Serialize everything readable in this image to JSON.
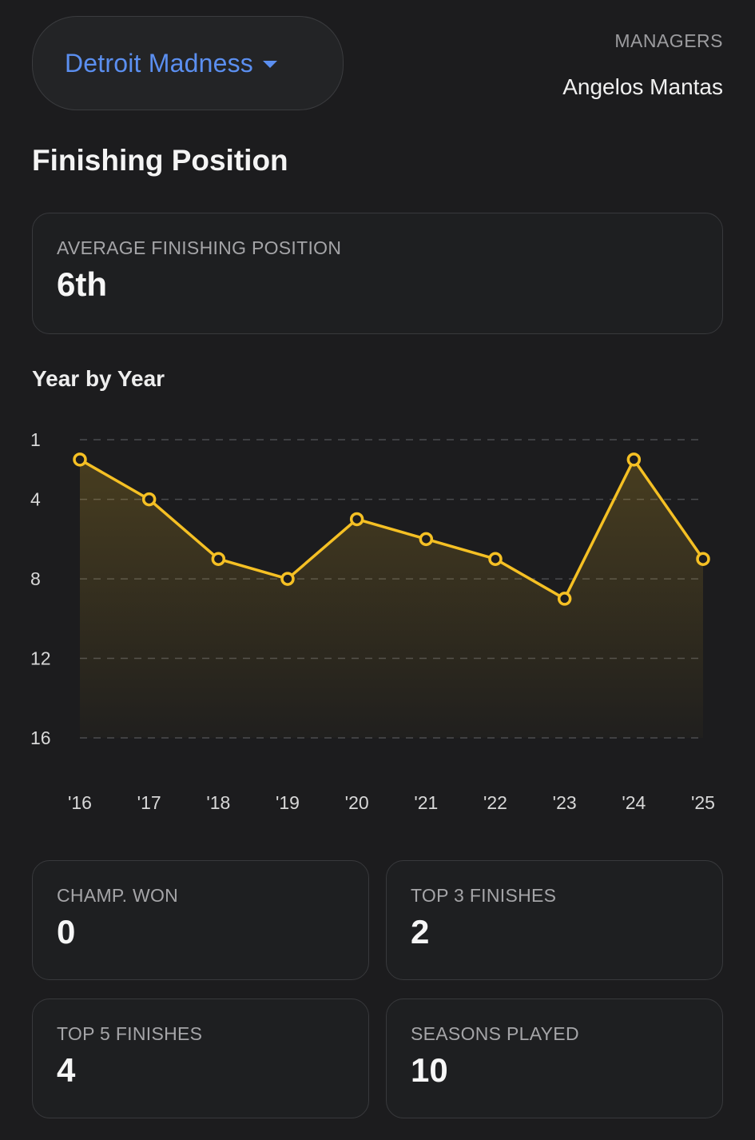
{
  "header": {
    "team_name": "Detroit Madness",
    "managers_label": "MANAGERS",
    "manager_name": "Angelos Mantas"
  },
  "section_title": "Finishing Position",
  "average": {
    "label": "AVERAGE FINISHING POSITION",
    "value": "6th"
  },
  "chart_title": "Year by Year",
  "chart_data": {
    "type": "line",
    "title": "Year by Year",
    "x": [
      "'16",
      "'17",
      "'18",
      "'19",
      "'20",
      "'21",
      "'22",
      "'23",
      "'24",
      "'25"
    ],
    "series": [
      {
        "values": [
          2,
          4,
          7,
          8,
          5,
          6,
          7,
          9,
          2,
          7
        ]
      }
    ],
    "y_ticks": [
      "1",
      "4",
      "8",
      "12",
      "16"
    ],
    "y_tick_values": [
      1,
      4,
      8,
      12,
      16
    ],
    "ylim": [
      1,
      16
    ],
    "y_inverted": true,
    "grid": true,
    "line_color": "#f5c024"
  },
  "stats": [
    {
      "label": "CHAMP. WON",
      "value": "0"
    },
    {
      "label": "TOP 3 FINISHES",
      "value": "2"
    },
    {
      "label": "TOP 5 FINISHES",
      "value": "4"
    },
    {
      "label": "SEASONS PLAYED",
      "value": "10"
    }
  ],
  "colors": {
    "background": "#1c1c1e",
    "accent": "#5b8ff0",
    "line": "#f5c024"
  }
}
